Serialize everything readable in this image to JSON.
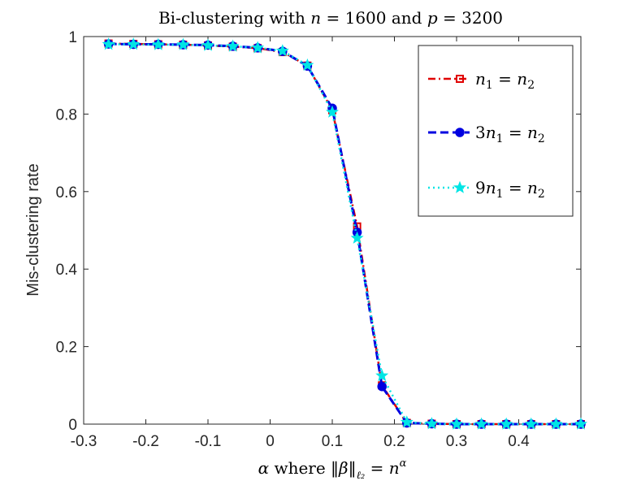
{
  "chart_data": {
    "type": "line",
    "title": "Bi-clustering with n = 1600 and p = 3200",
    "title_parts": {
      "pre": "Bi-clustering with ",
      "n_var": "n",
      "n_eq": " = 1600 and ",
      "p_var": "p",
      "p_eq": " = 3200"
    },
    "xlabel": "α where ‖β‖ℓ₂ = n^α",
    "xlabel_parts": {
      "alpha": "α",
      "where": " where ",
      "norm_open": "‖",
      "beta": "β",
      "norm_close": "‖",
      "sub": "ℓ₂",
      "eq": " = ",
      "n": "n",
      "sup": "α"
    },
    "ylabel": "Mis-clustering rate",
    "xlim": [
      -0.3,
      0.5
    ],
    "ylim": [
      0,
      1
    ],
    "xticks": [
      -0.3,
      -0.2,
      -0.1,
      0,
      0.1,
      0.2,
      0.3,
      0.4
    ],
    "xtick_labels": [
      "-0.3",
      "-0.2",
      "-0.1",
      "0",
      "0.1",
      "0.2",
      "0.3",
      "0.4"
    ],
    "yticks": [
      0,
      0.2,
      0.4,
      0.6,
      0.8,
      1
    ],
    "ytick_labels": [
      "0",
      "0.2",
      "0.4",
      "0.6",
      "0.8",
      "1"
    ],
    "grid": false,
    "legend_position": "top-right",
    "x": [
      -0.26,
      -0.22,
      -0.18,
      -0.14,
      -0.1,
      -0.06,
      -0.02,
      0.02,
      0.06,
      0.1,
      0.14,
      0.18,
      0.22,
      0.26,
      0.3,
      0.34,
      0.38,
      0.42,
      0.46,
      0.5
    ],
    "series": [
      {
        "name": "n1 = n2",
        "label": {
          "a": "",
          "b": "n",
          "c": "1",
          "d": " = ",
          "e": "n",
          "f": "2"
        },
        "color": "#e00000",
        "dash": "dashdot",
        "marker": "square",
        "values": [
          0.982,
          0.981,
          0.98,
          0.979,
          0.977,
          0.974,
          0.97,
          0.96,
          0.925,
          0.81,
          0.51,
          0.1,
          0.003,
          0.001,
          0.0,
          0.0,
          0.0,
          0.0,
          0.0,
          0.0
        ]
      },
      {
        "name": "3n1 = n2",
        "label": {
          "a": "3",
          "b": "n",
          "c": "1",
          "d": " = ",
          "e": "n",
          "f": "2"
        },
        "color": "#0000e0",
        "dash": "dash",
        "marker": "circle",
        "values": [
          0.981,
          0.98,
          0.98,
          0.979,
          0.978,
          0.975,
          0.971,
          0.962,
          0.924,
          0.815,
          0.495,
          0.097,
          0.003,
          0.001,
          0.0,
          0.0,
          0.0,
          0.0,
          0.0,
          0.0
        ]
      },
      {
        "name": "9n1 = n2",
        "label": {
          "a": "9",
          "b": "n",
          "c": "1",
          "d": " = ",
          "e": "n",
          "f": "2"
        },
        "color": "#00e5e5",
        "dash": "dot",
        "marker": "star",
        "values": [
          0.98,
          0.98,
          0.979,
          0.979,
          0.977,
          0.975,
          0.971,
          0.963,
          0.926,
          0.805,
          0.48,
          0.125,
          0.005,
          0.001,
          0.0,
          0.0,
          0.0,
          0.0,
          0.0,
          0.0
        ]
      }
    ]
  }
}
